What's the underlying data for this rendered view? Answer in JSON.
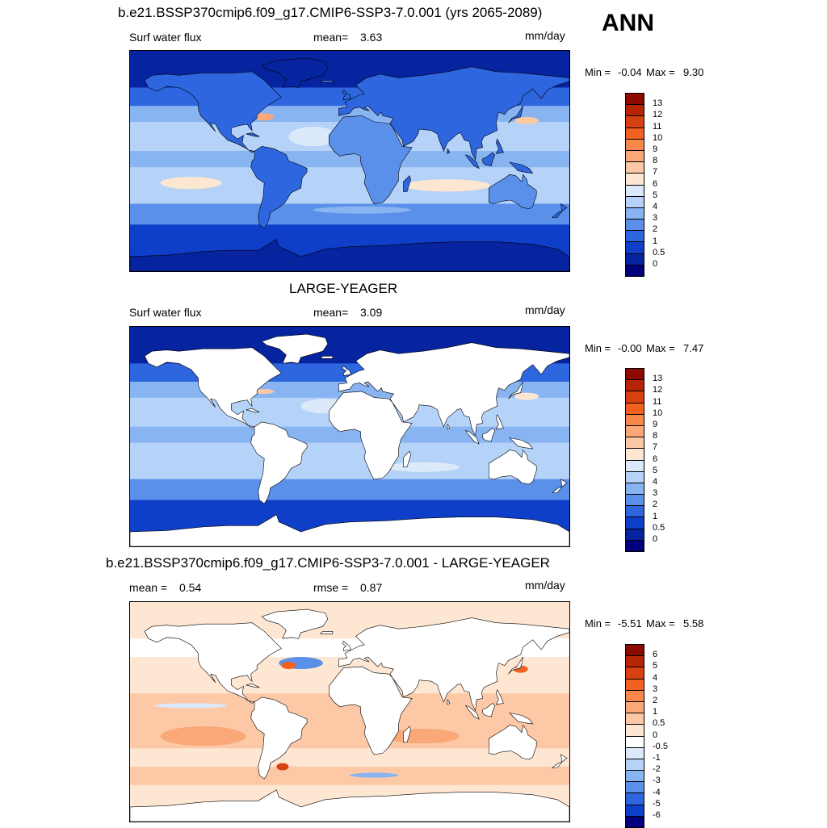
{
  "season": "ANN",
  "panels": [
    {
      "title": "b.e21.BSSP370cmip6.f09_g17.CMIP6-SSP3-7.0.001 (yrs 2065-2089)",
      "left_label": "Surf water flux",
      "stat_label": "mean=",
      "stat_value": "3.63",
      "stat2_label": "",
      "stat2_value": "",
      "units": "mm/day",
      "min_label": "Min =",
      "min_value": "-0.04",
      "max_label": "Max =",
      "max_value": "9.30",
      "scheme": "model",
      "colorbar": {
        "levels": [
          "13",
          "12",
          "11",
          "10",
          "9",
          "8",
          "7",
          "6",
          "5",
          "4",
          "3",
          "2",
          "1",
          "0.5",
          "0"
        ],
        "colors": [
          "#8c0a00",
          "#b52505",
          "#d9400f",
          "#f2611f",
          "#f7884a",
          "#faa878",
          "#fcc8a6",
          "#fde6d2",
          "#dbe9fb",
          "#b5d2f8",
          "#88b4f2",
          "#5a90ea",
          "#2e66e0",
          "#0f3fc9",
          "#0724a0",
          "#03007e"
        ]
      }
    },
    {
      "title": "LARGE-YEAGER",
      "left_label": "Surf water flux",
      "stat_label": "mean=",
      "stat_value": "3.09",
      "stat2_label": "",
      "stat2_value": "",
      "units": "mm/day",
      "min_label": "Min =",
      "min_value": "-0.00",
      "max_label": "Max =",
      "max_value": "7.47",
      "scheme": "obs",
      "colorbar": {
        "levels": [
          "13",
          "12",
          "11",
          "10",
          "9",
          "8",
          "7",
          "6",
          "5",
          "4",
          "3",
          "2",
          "1",
          "0.5",
          "0"
        ],
        "colors": [
          "#8c0a00",
          "#b52505",
          "#d9400f",
          "#f2611f",
          "#f7884a",
          "#faa878",
          "#fcc8a6",
          "#fde6d2",
          "#dbe9fb",
          "#b5d2f8",
          "#88b4f2",
          "#5a90ea",
          "#2e66e0",
          "#0f3fc9",
          "#0724a0",
          "#03007e"
        ]
      }
    },
    {
      "title": "b.e21.BSSP370cmip6.f09_g17.CMIP6-SSP3-7.0.001 - LARGE-YEAGER",
      "left_label": "mean =",
      "stat_label": "",
      "stat_value": "0.54",
      "stat2_label": "rmse =",
      "stat2_value": "0.87",
      "units": "mm/day",
      "min_label": "Min =",
      "min_value": "-5.51",
      "max_label": "Max =",
      "max_value": "5.58",
      "scheme": "diff",
      "colorbar": {
        "levels": [
          "6",
          "5",
          "4",
          "3",
          "2",
          "1",
          "0.5",
          "0",
          "-0.5",
          "-1",
          "-2",
          "-3",
          "-4",
          "-5",
          "-6"
        ],
        "colors": [
          "#8c0a00",
          "#b52505",
          "#d9400f",
          "#f2611f",
          "#f7884a",
          "#faa878",
          "#fcc8a6",
          "#fde6d2",
          "#ffffff",
          "#dbe9fb",
          "#b5d2f8",
          "#88b4f2",
          "#5a90ea",
          "#2e66e0",
          "#0f3fc9",
          "#03007e"
        ]
      }
    }
  ]
}
